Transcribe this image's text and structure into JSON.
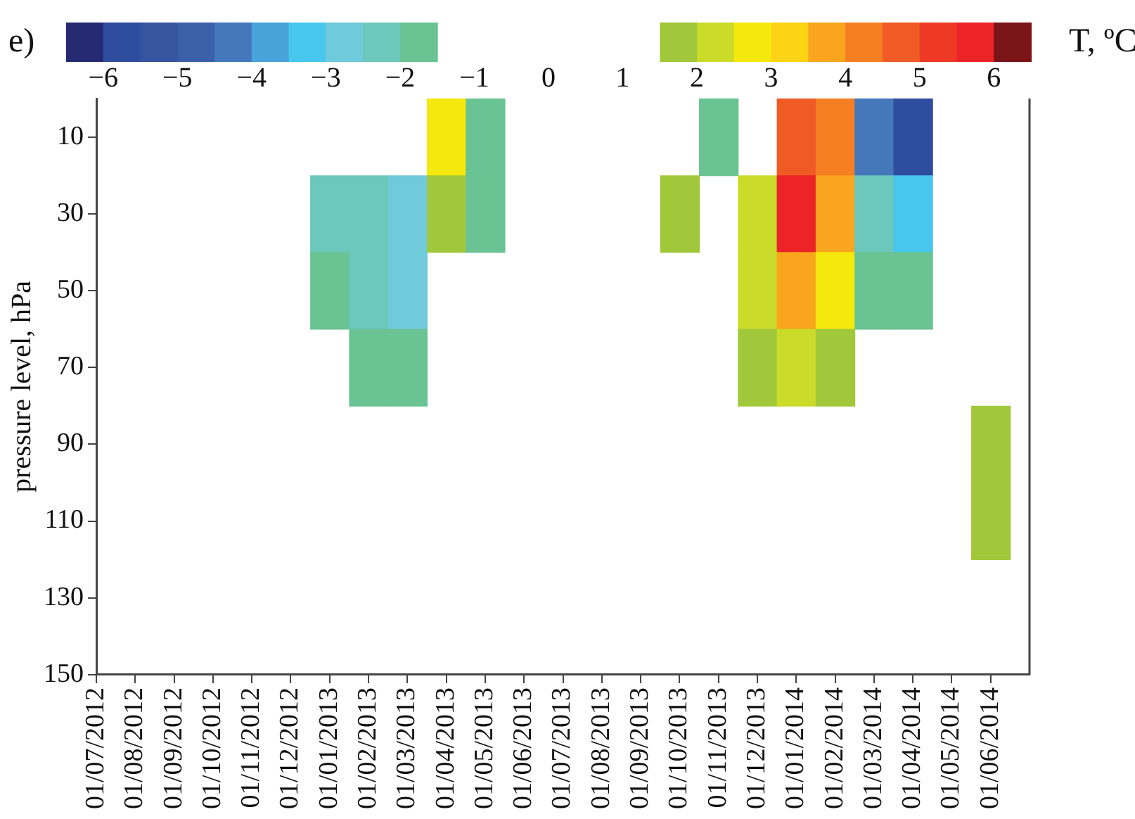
{
  "chart_data": {
    "type": "heatmap",
    "title": "e)",
    "ylabel": "pressure level, hPa",
    "clabel": "T, ºC",
    "categories": [
      "01/07/2012",
      "01/08/2012",
      "01/09/2012",
      "01/10/2012",
      "01/11/2012",
      "01/12/2012",
      "01/01/2013",
      "01/02/2013",
      "01/03/2013",
      "01/04/2013",
      "01/05/2013",
      "01/06/2013",
      "01/07/2013",
      "01/08/2013",
      "01/09/2013",
      "01/10/2013",
      "01/11/2013",
      "01/12/2013",
      "01/01/2014",
      "01/02/2014",
      "01/03/2014",
      "01/04/2014",
      "01/05/2014",
      "01/06/2014"
    ],
    "y_categories": [
      "10",
      "30",
      "50",
      "70",
      "90",
      "110",
      "130",
      "150"
    ],
    "cells": [
      [
        null,
        null,
        null,
        null,
        null,
        null,
        null,
        null,
        null,
        2.6,
        -1.9,
        null,
        null,
        null,
        null,
        null,
        -1.6,
        null,
        4.5,
        4.2,
        -4.5,
        -5.8,
        null,
        null
      ],
      [
        null,
        null,
        null,
        null,
        null,
        null,
        -2.2,
        -2.2,
        -2.8,
        1.7,
        -1.6,
        null,
        null,
        null,
        null,
        1.6,
        null,
        2.2,
        5.5,
        3.5,
        -2.5,
        -3.2,
        null,
        null
      ],
      [
        null,
        null,
        null,
        null,
        null,
        null,
        -1.8,
        -2.2,
        -2.9,
        null,
        null,
        null,
        null,
        null,
        null,
        null,
        null,
        2.0,
        3.8,
        2.8,
        -1.6,
        -1.8,
        null,
        null
      ],
      [
        null,
        null,
        null,
        null,
        null,
        null,
        null,
        -1.7,
        -2.0,
        null,
        null,
        null,
        null,
        null,
        null,
        null,
        null,
        1.7,
        2.2,
        1.8,
        null,
        null,
        null,
        null
      ],
      [
        null,
        null,
        null,
        null,
        null,
        null,
        null,
        null,
        null,
        null,
        null,
        null,
        null,
        null,
        null,
        null,
        null,
        null,
        null,
        null,
        null,
        null,
        null,
        1.8
      ],
      [
        null,
        null,
        null,
        null,
        null,
        null,
        null,
        null,
        null,
        null,
        null,
        null,
        null,
        null,
        null,
        null,
        null,
        null,
        null,
        null,
        null,
        null,
        null,
        1.6
      ],
      [
        null,
        null,
        null,
        null,
        null,
        null,
        null,
        null,
        null,
        null,
        null,
        null,
        null,
        null,
        null,
        null,
        null,
        null,
        null,
        null,
        null,
        null,
        null,
        null
      ],
      [
        null,
        null,
        null,
        null,
        null,
        null,
        null,
        null,
        null,
        null,
        null,
        null,
        null,
        null,
        null,
        null,
        null,
        null,
        null,
        null,
        null,
        null,
        null,
        null
      ]
    ],
    "clim": [
      -6.5,
      6.5
    ],
    "cticks": [
      -6,
      -5,
      -4,
      -3,
      -2,
      -1,
      0,
      1,
      2,
      3,
      4,
      5,
      6
    ]
  }
}
